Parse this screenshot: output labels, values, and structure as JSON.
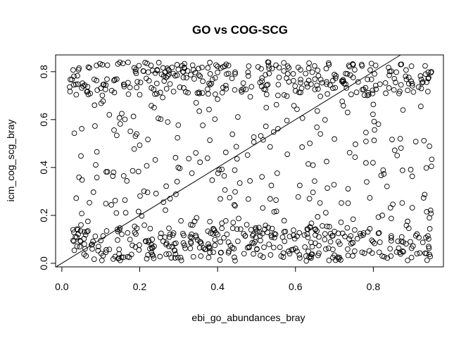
{
  "chart_data": {
    "type": "scatter",
    "title": "GO vs COG-SCG",
    "xlabel": "ebi_go_abundances_bray",
    "ylabel": "icm_cog_scg_bray",
    "xlim": [
      -0.016,
      0.98
    ],
    "ylim": [
      -0.015,
      0.87
    ],
    "xticks": [
      0.0,
      0.2,
      0.4,
      0.6,
      0.8
    ],
    "xtick_labels": [
      "0.0",
      "0.2",
      "0.4",
      "0.6",
      "0.8"
    ],
    "yticks": [
      0.0,
      0.2,
      0.4,
      0.6,
      0.8
    ],
    "ytick_labels": [
      "0.0",
      "0.2",
      "0.4",
      "0.6",
      "0.8"
    ],
    "reference_line": {
      "type": "abline",
      "intercept": 0,
      "slope": 1
    },
    "grid": false,
    "legend": "none",
    "n_points": 900,
    "point_style": "open-circle",
    "x_range_of_points": [
      0.02,
      0.95
    ],
    "y_range_of_points": [
      0.01,
      0.84
    ],
    "points": []
  }
}
